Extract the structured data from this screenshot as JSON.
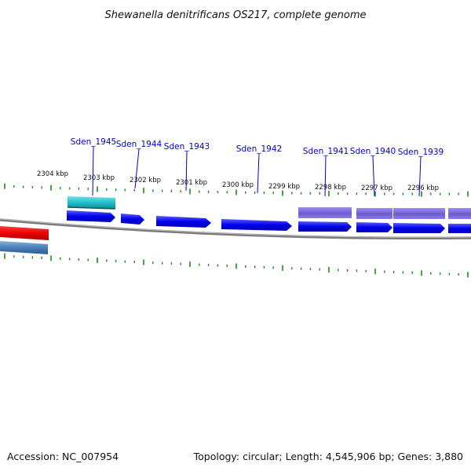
{
  "title": "Shewanella denitrificans OS217, complete genome",
  "footer": {
    "accession": "Accession: NC_007954",
    "summary": "Topology: circular; Length: 4,545,906 bp; Genes: 3,880"
  },
  "scale_labels": [
    "2304 kbp",
    "2303 kbp",
    "2302 kbp",
    "2301 kbp",
    "2300 kbp",
    "2299 kbp",
    "2298 kbp",
    "2297 kbp",
    "2296 kbp"
  ],
  "gene_labels": [
    "Sden_1945",
    "Sden_1944",
    "Sden_1943",
    "Sden_1942",
    "Sden_1941",
    "Sden_1940",
    "Sden_1939"
  ],
  "colors": {
    "cds": "#0000ee",
    "cds_light": "#3c3cff",
    "gene_outer": "#7b68d8",
    "teal": "#30c8d0",
    "red": "#ee0000",
    "steel": "#4a7fb8",
    "backbone": "#888888",
    "tick": "#1a8a1a",
    "label": "#0000cc"
  }
}
